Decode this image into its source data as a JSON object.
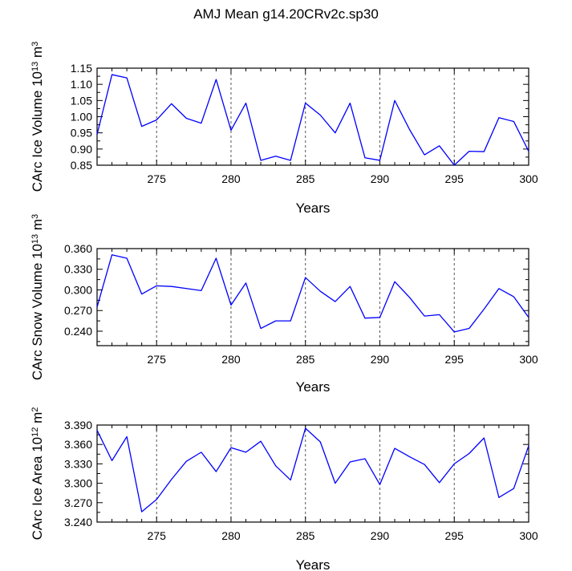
{
  "figure": {
    "title": "AMJ Mean g14.20CRv2c.sp30"
  },
  "chart_data": [
    {
      "type": "line",
      "title": "AMJ Mean g14.20CRv2c.sp30",
      "ylabel_main": "CArc Ice Volume 10",
      "ylabel_exp": "13",
      "ylabel_unit": " m",
      "ylabel_unit_exp": "3",
      "xlabel": "Years",
      "xlim": [
        271,
        300
      ],
      "ylim": [
        0.85,
        1.15
      ],
      "yticks": [
        "0.85",
        "0.90",
        "0.95",
        "1.00",
        "1.05",
        "1.10",
        "1.15"
      ],
      "xticks": [
        "275",
        "280",
        "285",
        "290",
        "295",
        "300"
      ],
      "x": [
        271,
        272,
        273,
        274,
        275,
        276,
        277,
        278,
        279,
        280,
        281,
        282,
        283,
        284,
        285,
        286,
        287,
        288,
        289,
        290,
        291,
        292,
        293,
        294,
        295,
        296,
        297,
        298,
        299,
        300
      ],
      "values": [
        0.945,
        1.13,
        1.12,
        0.97,
        0.99,
        1.04,
        0.995,
        0.98,
        1.115,
        0.958,
        1.042,
        0.865,
        0.878,
        0.865,
        1.042,
        1.005,
        0.95,
        1.042,
        0.873,
        0.865,
        1.05,
        0.96,
        0.882,
        0.91,
        0.85,
        0.893,
        0.892,
        0.997,
        0.985,
        0.893
      ],
      "line_color": "#0000ff",
      "grid_color": "#555555"
    },
    {
      "type": "line",
      "ylabel_main": "CArc Snow Volume 10",
      "ylabel_exp": "13",
      "ylabel_unit": " m",
      "ylabel_unit_exp": "3",
      "xlabel": "Years",
      "xlim": [
        271,
        300
      ],
      "ylim": [
        0.219,
        0.36
      ],
      "yticks": [
        "0.240",
        "0.270",
        "0.300",
        "0.330",
        "0.360"
      ],
      "xticks": [
        "275",
        "280",
        "285",
        "290",
        "295",
        "300"
      ],
      "x": [
        271,
        272,
        273,
        274,
        275,
        276,
        277,
        278,
        279,
        280,
        281,
        282,
        283,
        284,
        285,
        286,
        287,
        288,
        289,
        290,
        291,
        292,
        293,
        294,
        295,
        296,
        297,
        298,
        299,
        300
      ],
      "values": [
        0.275,
        0.351,
        0.346,
        0.294,
        0.306,
        0.305,
        0.302,
        0.299,
        0.346,
        0.278,
        0.31,
        0.244,
        0.255,
        0.255,
        0.318,
        0.298,
        0.283,
        0.305,
        0.259,
        0.26,
        0.312,
        0.289,
        0.262,
        0.264,
        0.239,
        0.244,
        0.272,
        0.302,
        0.29,
        0.26
      ],
      "line_color": "#0000ff",
      "grid_color": "#555555"
    },
    {
      "type": "line",
      "ylabel_main": "CArc Ice Area 10",
      "ylabel_exp": "12",
      "ylabel_unit": " m",
      "ylabel_unit_exp": "2",
      "xlabel": "Years",
      "xlim": [
        271,
        300
      ],
      "ylim": [
        3.24,
        3.39
      ],
      "yticks": [
        "3.240",
        "3.270",
        "3.300",
        "3.330",
        "3.360",
        "3.390"
      ],
      "xticks": [
        "275",
        "280",
        "285",
        "290",
        "295",
        "300"
      ],
      "x": [
        271,
        272,
        273,
        274,
        275,
        276,
        277,
        278,
        279,
        280,
        281,
        282,
        283,
        284,
        285,
        286,
        287,
        288,
        289,
        290,
        291,
        292,
        293,
        294,
        295,
        296,
        297,
        298,
        299,
        300
      ],
      "values": [
        3.382,
        3.335,
        3.372,
        3.256,
        3.275,
        3.306,
        3.334,
        3.348,
        3.318,
        3.355,
        3.348,
        3.365,
        3.327,
        3.305,
        3.385,
        3.364,
        3.3,
        3.333,
        3.338,
        3.298,
        3.354,
        3.341,
        3.329,
        3.301,
        3.33,
        3.346,
        3.37,
        3.278,
        3.292,
        3.358
      ],
      "line_color": "#0000ff",
      "grid_color": "#555555"
    }
  ]
}
